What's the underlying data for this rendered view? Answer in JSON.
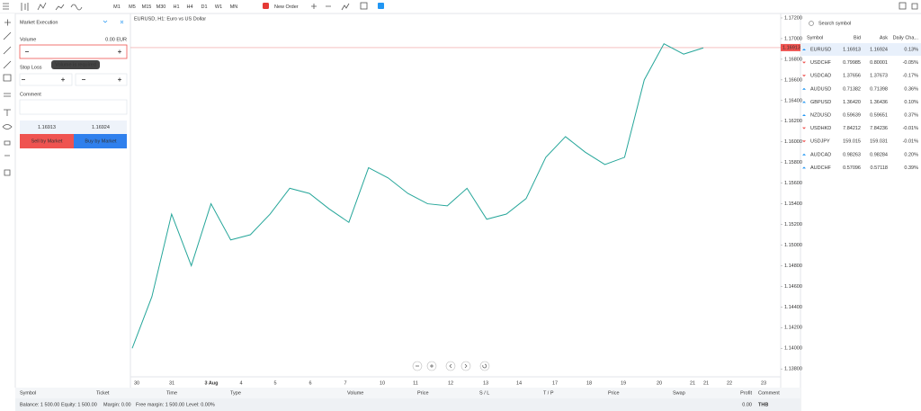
{
  "toolbar": {
    "timeframes": [
      "M1",
      "M5",
      "M15",
      "M30",
      "H1",
      "H4",
      "D1",
      "W1",
      "MN"
    ],
    "active_timeframe": "H1",
    "new_order": "New Order"
  },
  "order_panel": {
    "title": "Market Execution",
    "volume_label": "Volume",
    "volume_unit": "0.00 EUR",
    "tooltip": "Volume is required",
    "stop_loss_label": "Stop Loss",
    "comment_label": "Comment",
    "bid": "1.16913",
    "ask": "1.16924",
    "sell_button": "Sell by Market",
    "buy_button": "Buy by Market"
  },
  "chart": {
    "title": "EURUSD, H1: Euro vs US Dollar",
    "current_price": {
      "value": 1.16913,
      "label": "1.16913"
    },
    "ylim": [
      1.138,
      1.1728
    ],
    "yticks": [
      {
        "value": 1.172,
        "label": "1.17200"
      },
      {
        "value": 1.17,
        "label": "1.17000"
      },
      {
        "value": 1.168,
        "label": "1.16800"
      },
      {
        "value": 1.166,
        "label": "1.16600"
      },
      {
        "value": 1.164,
        "label": "1.16400"
      },
      {
        "value": 1.162,
        "label": "1.16200"
      },
      {
        "value": 1.16,
        "label": "1.16000"
      },
      {
        "value": 1.158,
        "label": "1.15800"
      },
      {
        "value": 1.156,
        "label": "1.15600"
      },
      {
        "value": 1.154,
        "label": "1.15400"
      },
      {
        "value": 1.152,
        "label": "1.15200"
      },
      {
        "value": 1.15,
        "label": "1.15000"
      },
      {
        "value": 1.148,
        "label": "1.14800"
      },
      {
        "value": 1.146,
        "label": "1.14600"
      },
      {
        "value": 1.144,
        "label": "1.14400"
      },
      {
        "value": 1.142,
        "label": "1.14200"
      },
      {
        "value": 1.14,
        "label": "1.14000"
      },
      {
        "value": 1.138,
        "label": "1.13800"
      }
    ],
    "dates": [
      "30",
      "31",
      "3 Aug",
      "4",
      "5",
      "6",
      "7",
      "10",
      "11",
      "12",
      "13",
      "14",
      "17",
      "18",
      "19",
      "20",
      "21",
      "21",
      "22",
      "23"
    ],
    "prices": [
      1.14,
      1.145,
      1.153,
      1.148,
      1.154,
      1.1505,
      1.151,
      1.153,
      1.1555,
      1.155,
      1.1535,
      1.1522,
      1.1575,
      1.1565,
      1.155,
      1.154,
      1.1538,
      1.1555,
      1.1525,
      1.153,
      1.1545,
      1.1585,
      1.1605,
      1.159,
      1.1578,
      1.1585,
      1.166,
      1.1695,
      1.1685,
      1.1691
    ],
    "color": "#26a69a"
  },
  "watchlist": {
    "search": "Search symbol",
    "columns": [
      "Symbol",
      "Bid",
      "Ask",
      "Daily Cha..."
    ],
    "rows": [
      [
        "EURUSD",
        "1.16913",
        "1.16924",
        "0.13%"
      ],
      [
        "USDCHF",
        "0.79985",
        "0.80001",
        "-0.05%"
      ],
      [
        "USDCAD",
        "1.37656",
        "1.37673",
        "-0.17%"
      ],
      [
        "AUDUSD",
        "0.71382",
        "0.71398",
        "0.36%"
      ],
      [
        "GBPUSD",
        "1.36420",
        "1.36436",
        "0.10%"
      ],
      [
        "NZDUSD",
        "0.59639",
        "0.59651",
        "0.37%"
      ],
      [
        "USDHKD",
        "7.84212",
        "7.84236",
        "-0.01%"
      ],
      [
        "USDJPY",
        "159.015",
        "159.031",
        "-0.01%"
      ],
      [
        "AUDCAD",
        "0.98263",
        "0.98284",
        "0.20%"
      ],
      [
        "AUDCHF",
        "0.57096",
        "0.57118",
        "0.39%"
      ]
    ]
  },
  "positions": {
    "columns": [
      "Symbol",
      "Ticket",
      "Time",
      "Type",
      "Volume",
      "Price",
      "S / L",
      "T / P",
      "Price",
      "Swap",
      "Profit",
      "Comment"
    ],
    "footer": [
      "Balance: 1 500.00",
      "Equity: 1 500.00",
      "Margin: 0.00",
      "Free margin: 1 500.00",
      "Level: 0.00%"
    ],
    "profit": "0.00",
    "currency": "THB"
  }
}
